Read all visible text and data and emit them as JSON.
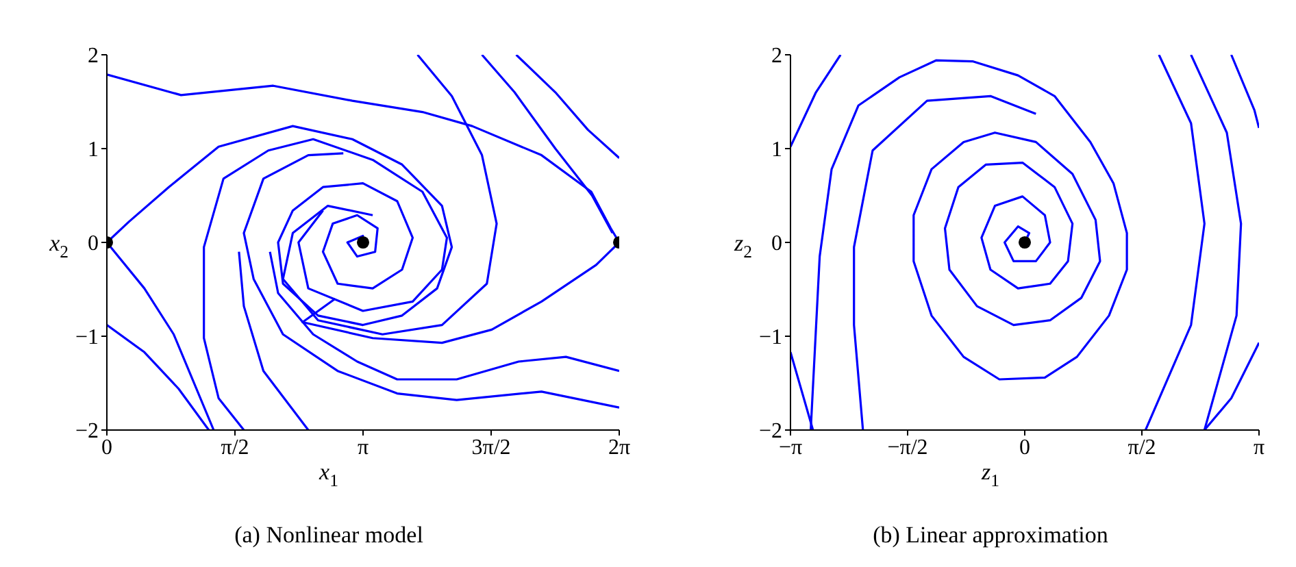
{
  "chart_data": [
    {
      "type": "line",
      "title": "(a) Nonlinear model",
      "xlabel": "x$_{1}$",
      "ylabel": "x$_{2}$",
      "xlim": [
        0,
        6.2832
      ],
      "ylim": [
        -2,
        2
      ],
      "xticks": [
        0,
        {
          "value": 1.5708,
          "label": "π/2"
        },
        {
          "value": 3.1416,
          "label": "π"
        },
        {
          "value": 4.7124,
          "label": "3π/2"
        },
        {
          "value": 6.2832,
          "label": "2π"
        }
      ],
      "yticks": [
        -2,
        -1,
        0,
        1,
        2
      ],
      "grid": false,
      "marker": "none",
      "series": [
        {
          "color": "#0000ff",
          "x": [
            0,
            0.91,
            2.04,
            3.01,
            3.87,
            4.48,
            5.33,
            5.94,
            6.18,
            6.2832
          ],
          "values": [
            1.79,
            1.57,
            1.67,
            1.51,
            1.39,
            1.24,
            0.93,
            0.54,
            0.15,
            0
          ]
        },
        {
          "color": "#0000ff",
          "x": [
            0,
            0.27,
            0.76,
            1.37,
            2.28,
            3.01,
            3.62,
            4.11,
            4.23,
            4.05,
            3.62,
            3.14,
            2.59,
            2.16,
            2.1,
            2.28,
            2.65,
            3.14,
            3.56,
            3.75,
            3.62,
            3.26,
            2.83,
            2.65,
            2.77,
            3.07,
            3.32,
            3.29,
            3.07,
            2.95,
            3.14,
            3.1416
          ],
          "values": [
            0,
            0.22,
            0.59,
            1.02,
            1.24,
            1.1,
            0.83,
            0.39,
            -0.05,
            -0.49,
            -0.78,
            -0.88,
            -0.78,
            -0.44,
            0,
            0.34,
            0.59,
            0.63,
            0.44,
            0.05,
            -0.29,
            -0.49,
            -0.44,
            -0.1,
            0.2,
            0.29,
            0.15,
            -0.1,
            -0.15,
            0,
            0.07,
            0
          ]
        },
        {
          "color": "#0000ff",
          "x": [
            6.2832,
            6.0,
            5.33,
            4.72,
            4.11,
            3.26,
            2.4,
            2.8
          ],
          "values": [
            0,
            -0.24,
            -0.63,
            -0.93,
            -1.07,
            -1.02,
            -0.85,
            -0.6
          ]
        },
        {
          "color": "#0000ff",
          "x": [
            1.31,
            0.82,
            0.46,
            0
          ],
          "values": [
            -2,
            -0.98,
            -0.49,
            0
          ]
        },
        {
          "color": "#0000ff",
          "x": [
            1.25,
            0.88,
            0.46,
            0
          ],
          "values": [
            -2,
            -1.56,
            -1.17,
            -0.88
          ]
        },
        {
          "color": "#0000ff",
          "x": [
            1.68,
            1.37,
            1.19,
            1.19,
            1.43,
            1.98,
            2.53,
            3.26,
            3.87,
            4.17,
            4.11,
            3.75,
            3.14,
            2.47,
            2.35,
            2.65
          ],
          "values": [
            -2,
            -1.66,
            -1.02,
            -0.05,
            0.68,
            0.98,
            1.1,
            0.88,
            0.54,
            0.05,
            -0.29,
            -0.63,
            -0.73,
            -0.49,
            0,
            0.34
          ]
        },
        {
          "color": "#0000ff",
          "x": [
            5.02,
            5.5,
            5.9,
            6.2832
          ],
          "values": [
            2,
            1.6,
            1.2,
            0.9
          ]
        },
        {
          "color": "#0000ff",
          "x": [
            4.6,
            5.0,
            5.5,
            5.95,
            6.2
          ],
          "values": [
            2,
            1.6,
            1.0,
            0.5,
            0.1
          ]
        },
        {
          "color": "#0000ff",
          "x": [
            3.81,
            4.23,
            4.6,
            4.78,
            4.66,
            4.11,
            3.38,
            2.59,
            2.16,
            2.28,
            2.71,
            3.26
          ],
          "values": [
            2,
            1.56,
            0.93,
            0.2,
            -0.44,
            -0.88,
            -0.98,
            -0.83,
            -0.39,
            0.1,
            0.39,
            0.29
          ]
        },
        {
          "color": "#0000ff",
          "x": [
            6.2832,
            5.63,
            5.05,
            4.29,
            3.56,
            3.07,
            2.53,
            2.1,
            2.0
          ],
          "values": [
            -1.37,
            -1.22,
            -1.27,
            -1.46,
            -1.46,
            -1.27,
            -0.98,
            -0.54,
            -0.1
          ]
        },
        {
          "color": "#0000ff",
          "x": [
            6.2832,
            5.33,
            4.29,
            3.56,
            2.83,
            2.16,
            1.8,
            1.68,
            1.92,
            2.47,
            2.9
          ],
          "values": [
            -1.76,
            -1.59,
            -1.68,
            -1.61,
            -1.37,
            -0.98,
            -0.39,
            0.1,
            0.68,
            0.93,
            0.95
          ]
        },
        {
          "color": "#0000ff",
          "x": [
            2.47,
            1.92,
            1.68,
            1.62
          ],
          "values": [
            -2,
            -1.37,
            -0.68,
            -0.1
          ]
        },
        {
          "type": "scatter",
          "marker": "circle",
          "color": "#000000",
          "x": [
            0,
            3.1416,
            6.2832
          ],
          "values": [
            0,
            0,
            0
          ]
        }
      ]
    },
    {
      "type": "line",
      "title": "(b) Linear approximation",
      "xlabel": "z$_{1}$",
      "ylabel": "z$_{2}$",
      "xlim": [
        -3.1416,
        3.1416
      ],
      "ylim": [
        -2,
        2
      ],
      "xticks": [
        {
          "value": -3.1416,
          "label": "−π"
        },
        {
          "value": -1.5708,
          "label": "−π/2"
        },
        0,
        {
          "value": 1.5708,
          "label": "π/2"
        },
        {
          "value": 3.1416,
          "label": "π"
        }
      ],
      "yticks": [
        -2,
        -1,
        0,
        1,
        2
      ],
      "grid": false,
      "marker": "none",
      "series": [
        {
          "color": "#0000ff",
          "x": [
            -3.1416,
            -2.8,
            -2.47
          ],
          "values": [
            1.02,
            1.6,
            2
          ]
        },
        {
          "color": "#0000ff",
          "x": [
            -2.87,
            -2.75,
            -2.59,
            -2.23,
            -1.68,
            -1.19,
            -0.7,
            -0.09,
            0.4,
            0.88,
            1.19,
            1.37,
            1.37,
            1.13,
            0.7,
            0.27,
            -0.34,
            -0.82,
            -1.25,
            -1.49,
            -1.49,
            -1.25,
            -0.82,
            -0.4,
            0.15,
            0.64,
            0.95,
            1.01,
            0.76,
            0.34,
            -0.15,
            -0.64,
            -1.01,
            -1.07,
            -0.89,
            -0.52,
            -0.03,
            0.4,
            0.64,
            0.58,
            0.34,
            -0.09,
            -0.46,
            -0.58,
            -0.4,
            -0.03,
            0.27,
            0.34,
            0.15,
            -0.15,
            -0.27,
            -0.09,
            0.06,
            0
          ],
          "values": [
            -2,
            -0.15,
            0.78,
            1.46,
            1.76,
            1.94,
            1.93,
            1.78,
            1.56,
            1.07,
            0.63,
            0.1,
            -0.29,
            -0.78,
            -1.22,
            -1.44,
            -1.46,
            -1.22,
            -0.78,
            -0.2,
            0.29,
            0.78,
            1.07,
            1.17,
            1.07,
            0.73,
            0.24,
            -0.2,
            -0.59,
            -0.83,
            -0.88,
            -0.68,
            -0.29,
            0.15,
            0.59,
            0.83,
            0.85,
            0.59,
            0.2,
            -0.2,
            -0.44,
            -0.49,
            -0.29,
            0.05,
            0.39,
            0.49,
            0.29,
            0,
            -0.2,
            -0.2,
            0,
            0.17,
            0.1,
            0
          ]
        },
        {
          "color": "#0000ff",
          "x": [
            2.77,
            3.08,
            3.1416
          ],
          "values": [
            2,
            1.41,
            1.22
          ]
        },
        {
          "color": "#0000ff",
          "x": [
            2.23,
            2.71,
            2.9,
            2.84,
            2.41
          ],
          "values": [
            2,
            1.17,
            0.2,
            -0.78,
            -2
          ]
        },
        {
          "color": "#0000ff",
          "x": [
            1.8,
            2.23,
            2.41,
            2.23,
            1.62
          ],
          "values": [
            2,
            1.27,
            0.2,
            -0.88,
            -2
          ]
        },
        {
          "color": "#0000ff",
          "x": [
            -3.1416,
            -2.84
          ],
          "values": [
            -1.17,
            -2
          ]
        },
        {
          "color": "#0000ff",
          "x": [
            3.1416,
            2.77,
            2.41
          ],
          "values": [
            -1.07,
            -1.66,
            -2
          ]
        },
        {
          "color": "#0000ff",
          "x": [
            -2.17,
            -2.29,
            -2.29,
            -2.04,
            -1.31,
            -0.46,
            0.15
          ],
          "values": [
            -2,
            -0.88,
            -0.05,
            0.98,
            1.51,
            1.56,
            1.37
          ]
        },
        {
          "type": "scatter",
          "marker": "circle",
          "color": "#000000",
          "x": [
            0
          ],
          "values": [
            0
          ]
        }
      ]
    }
  ]
}
